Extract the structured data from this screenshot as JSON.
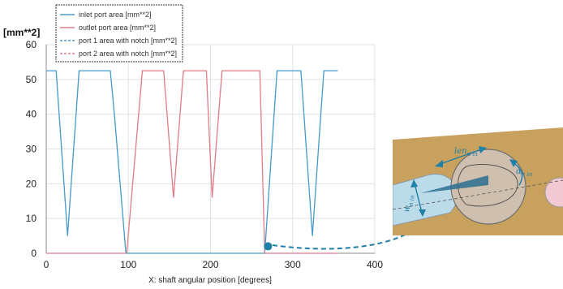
{
  "chart_data": {
    "type": "line",
    "ylabel": "[mm**2]",
    "xlabel": "X: shaft angular position [degrees]",
    "xlim": [
      0,
      400
    ],
    "ylim": [
      0,
      60
    ],
    "xticks": [
      0,
      100,
      200,
      300,
      400
    ],
    "yticks": [
      0,
      10,
      20,
      30,
      40,
      50,
      60
    ],
    "grid": true,
    "legend_position": "top-left",
    "series": [
      {
        "name": "inlet port area [mm**2]",
        "color": "#4a9cc8",
        "style": "solid",
        "x": [
          0,
          12,
          26,
          40,
          52,
          65,
          78,
          83,
          97,
          100,
          262,
          266,
          281,
          295,
          310,
          324,
          338,
          351,
          355
        ],
        "y": [
          52.5,
          52.5,
          5,
          52.5,
          52.5,
          52.5,
          52.5,
          40,
          0,
          0,
          0,
          0,
          52.5,
          52.5,
          52.5,
          5,
          52.5,
          52.5,
          52.5
        ]
      },
      {
        "name": "outlet port area [mm**2]",
        "color": "#e07f8c",
        "style": "solid",
        "x": [
          0,
          80,
          98,
          117,
          127,
          143,
          155,
          167,
          180,
          195,
          202,
          214,
          226,
          240,
          260,
          266,
          275,
          355
        ],
        "y": [
          0,
          0,
          0,
          52.5,
          52.5,
          52.5,
          16,
          52.5,
          52.5,
          52.5,
          16,
          52.5,
          52.5,
          52.5,
          52.5,
          0,
          0,
          0
        ]
      },
      {
        "name": "port 1 area with notch [mm**2]",
        "color": "#4a9cc8",
        "style": "dashed",
        "x": [
          0,
          12,
          26,
          40,
          52,
          65,
          78,
          83,
          97,
          100,
          262,
          266,
          281,
          295,
          310,
          324,
          338,
          351,
          355
        ],
        "y": [
          52.5,
          52.5,
          5,
          52.5,
          52.5,
          52.5,
          52.5,
          40,
          0,
          0,
          0,
          0,
          52.5,
          52.5,
          52.5,
          5,
          52.5,
          52.5,
          52.5
        ]
      },
      {
        "name": "port 2 area with notch [mm**2]",
        "color": "#e07f8c",
        "style": "dashed",
        "x": [
          0,
          80,
          98,
          117,
          127,
          143,
          155,
          167,
          180,
          195,
          202,
          214,
          226,
          240,
          260,
          266,
          275,
          355
        ],
        "y": [
          0,
          0,
          0,
          52.5,
          52.5,
          52.5,
          16,
          52.5,
          52.5,
          52.5,
          16,
          52.5,
          52.5,
          52.5,
          52.5,
          0,
          0,
          0
        ]
      }
    ],
    "annotations": [
      {
        "type": "marker",
        "x": 270,
        "y": 2,
        "color": "#1f7fa6"
      }
    ]
  },
  "inset": {
    "labels": {
      "len": "len",
      "len_sub": "n in",
      "alpha": "α",
      "alpha_sub": "n in",
      "w": "w",
      "w_sub": "n in"
    },
    "colors": {
      "background": "#c9a15e",
      "circle": "#cfbfae",
      "accent": "#1f7fa6",
      "port_fill": "#bcdbe9",
      "pink_port": "#f3c9d4"
    }
  }
}
